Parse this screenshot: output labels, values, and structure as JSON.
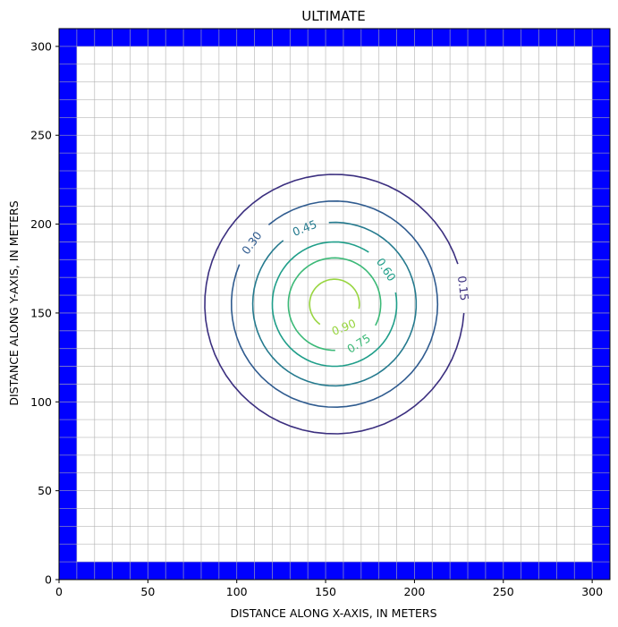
{
  "chart_data": {
    "type": "contour",
    "title": "ULTIMATE",
    "xlabel": "DISTANCE ALONG X-AXIS, IN METERS",
    "ylabel": "DISTANCE ALONG Y-AXIS, IN METERS",
    "xlim": [
      0,
      310
    ],
    "ylim": [
      0,
      310
    ],
    "xticks": [
      "0",
      "50",
      "100",
      "150",
      "200",
      "250",
      "300"
    ],
    "yticks": [
      "0",
      "50",
      "100",
      "150",
      "200",
      "250",
      "300"
    ],
    "grid": {
      "spacing": 10,
      "color": "#b0b0b0"
    },
    "boundary": {
      "color": "#0000ff",
      "width": 10
    },
    "contours": [
      {
        "level": "0.15",
        "color": "#3b2f7f",
        "cx": 155,
        "cy": 155,
        "r": 73,
        "label_at": [
          228,
          164
        ]
      },
      {
        "level": "0.30",
        "color": "#2f5b8f",
        "cx": 155,
        "cy": 155,
        "r": 58,
        "label_at": [
          105,
          192
        ]
      },
      {
        "level": "0.45",
        "color": "#257a8e",
        "cx": 155,
        "cy": 155,
        "r": 46,
        "label_at": [
          135,
          206
        ]
      },
      {
        "level": "0.60",
        "color": "#1f9e89",
        "cx": 155,
        "cy": 155,
        "r": 35,
        "label_at": [
          194,
          181
        ]
      },
      {
        "level": "0.75",
        "color": "#3bb977",
        "cx": 155,
        "cy": 155,
        "r": 26,
        "label_at": [
          176,
          121
        ]
      },
      {
        "level": "0.90",
        "color": "#98d540",
        "cx": 155,
        "cy": 155,
        "r": 14,
        "label_at": [
          165,
          130
        ]
      }
    ]
  }
}
